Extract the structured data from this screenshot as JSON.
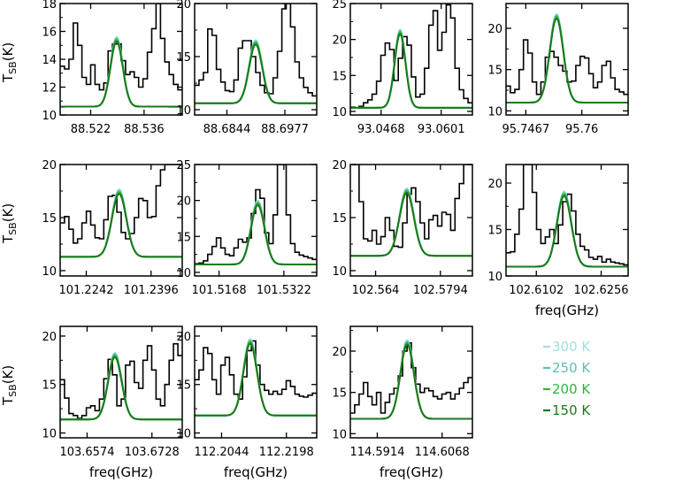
{
  "colors": {
    "observed": "#000000",
    "model_300K": "#9be3e0",
    "model_250K": "#5fbfae",
    "model_200K": "#33b03a",
    "model_150K": "#1a7a1a"
  },
  "legend": {
    "entries": [
      {
        "label": "300 K",
        "color_key": "model_300K"
      },
      {
        "label": "250 K",
        "color_key": "model_250K"
      },
      {
        "label": "200 K",
        "color_key": "model_200K"
      },
      {
        "label": "150 K",
        "color_key": "model_150K"
      }
    ]
  },
  "ylabel_main": "T",
  "ylabel_sub": "SB",
  "ylabel_unit": "(K)",
  "xlabel": "freq(GHz)",
  "chart_data": [
    {
      "type": "line",
      "row": 0,
      "col": 0,
      "show_ylabel": true,
      "show_xlabel": false,
      "ylim": [
        10,
        18
      ],
      "yticks": [
        "10",
        "12",
        "14",
        "16",
        "18"
      ],
      "yticks_v": [
        10,
        12,
        14,
        16,
        18
      ],
      "xlim": [
        88.514,
        88.546
      ],
      "xticks": [
        "88.522",
        "88.536"
      ],
      "xticks_v": [
        88.522,
        88.536
      ],
      "center": 88.5288,
      "width": 0.0016,
      "baseline": 10.6,
      "peak": 15.4,
      "observed_y": [
        13.5,
        13.3,
        14.0,
        16.6,
        15.0,
        12.7,
        12.2,
        13.6,
        12.2,
        11.8,
        12.3,
        14.6,
        15.1,
        15.1,
        13.9,
        12.9,
        13.1,
        12.7,
        12.0,
        12.6,
        14.5,
        16.2,
        18.0,
        15.5,
        13.8,
        12.9,
        12.2,
        11.8
      ]
    },
    {
      "type": "line",
      "row": 0,
      "col": 1,
      "show_ylabel": false,
      "show_xlabel": false,
      "ylim": [
        9.5,
        20
      ],
      "yticks": [
        "10",
        "15",
        "20"
      ],
      "yticks_v": [
        10,
        15,
        20
      ],
      "xlim": [
        88.677,
        88.705
      ],
      "xticks": [
        "88.6844",
        "88.6977"
      ],
      "xticks_v": [
        88.6844,
        88.6977
      ],
      "center": 88.691,
      "width": 0.0015,
      "baseline": 10.6,
      "peak": 16.3,
      "observed_y": [
        12.3,
        12.8,
        13.5,
        17.6,
        17.0,
        13.8,
        12.6,
        11.8,
        11.7,
        12.8,
        15.8,
        16.5,
        16.5,
        15.0,
        13.5,
        12.3,
        11.6,
        11.5,
        13.0,
        15.5,
        19.5,
        20.0,
        17.8,
        14.5,
        13.0,
        12.1,
        11.6,
        11.3
      ]
    },
    {
      "type": "line",
      "row": 0,
      "col": 2,
      "show_ylabel": false,
      "show_xlabel": false,
      "ylim": [
        9.5,
        25
      ],
      "yticks": [
        "10",
        "15",
        "20",
        "25"
      ],
      "yticks_v": [
        10,
        15,
        20,
        25
      ],
      "xlim": [
        93.04,
        93.067
      ],
      "xticks": [
        "93.0468",
        "93.0601"
      ],
      "xticks_v": [
        93.0468,
        93.0601
      ],
      "center": 93.051,
      "width": 0.0012,
      "baseline": 10.5,
      "peak": 21.0,
      "observed_y": [
        10.6,
        10.5,
        10.7,
        11.2,
        11.6,
        12.4,
        14.2,
        17.8,
        19.5,
        18.6,
        14.3,
        17.4,
        20.4,
        19.2,
        14.8,
        12.0,
        12.4,
        16.0,
        22.0,
        24.0,
        18.5,
        21.0,
        24.8,
        23.0,
        16.0,
        13.0,
        11.8,
        11.2
      ]
    },
    {
      "type": "line",
      "row": 0,
      "col": 3,
      "show_ylabel": false,
      "show_xlabel": false,
      "ylim": [
        9.5,
        23
      ],
      "yticks": [
        "10",
        "15",
        "20"
      ],
      "yticks_v": [
        10,
        15,
        20
      ],
      "xlim": [
        95.742,
        95.771
      ],
      "xticks": [
        "95.7467",
        "95.76"
      ],
      "xticks_v": [
        95.7467,
        95.76
      ],
      "center": 95.754,
      "width": 0.0016,
      "baseline": 11.0,
      "peak": 21.4,
      "observed_y": [
        13.0,
        12.2,
        12.6,
        15.0,
        18.6,
        17.0,
        13.5,
        12.0,
        13.5,
        16.5,
        17.2,
        16.5,
        15.5,
        14.8,
        13.5,
        13.6,
        15.5,
        16.6,
        16.4,
        14.5,
        12.8,
        13.5,
        15.5,
        16.0,
        14.0,
        12.6,
        12.3,
        12.0
      ]
    },
    {
      "type": "line",
      "row": 1,
      "col": 0,
      "show_ylabel": true,
      "show_xlabel": false,
      "ylim": [
        9.5,
        20
      ],
      "yticks": [
        "10",
        "15",
        "20"
      ],
      "yticks_v": [
        10,
        15,
        20
      ],
      "xlim": [
        101.218,
        101.247
      ],
      "xticks": [
        "101.2242",
        "101.2396"
      ],
      "xticks_v": [
        101.2242,
        101.2396
      ],
      "center": 101.232,
      "width": 0.0017,
      "baseline": 11.3,
      "peak": 17.4,
      "observed_y": [
        14.5,
        15.1,
        13.9,
        12.6,
        13.0,
        14.5,
        15.6,
        14.3,
        13.1,
        13.0,
        14.8,
        17.0,
        17.1,
        15.5,
        13.6,
        13.0,
        13.5,
        15.0,
        16.8,
        16.6,
        15.0,
        15.1,
        18.0,
        19.5,
        20.0,
        20.0,
        20.0,
        20.0
      ]
    },
    {
      "type": "line",
      "row": 1,
      "col": 1,
      "show_ylabel": false,
      "show_xlabel": false,
      "ylim": [
        9.5,
        25
      ],
      "yticks": [
        "10",
        "15",
        "20",
        "25"
      ],
      "yticks_v": [
        10,
        15,
        20,
        25
      ],
      "xlim": [
        101.511,
        101.54
      ],
      "xticks": [
        "101.5168",
        "101.5322"
      ],
      "xticks_v": [
        101.5168,
        101.5322
      ],
      "center": 101.526,
      "width": 0.0016,
      "baseline": 11.1,
      "peak": 19.6,
      "observed_y": [
        11.2,
        11.3,
        11.6,
        12.5,
        13.6,
        14.8,
        13.4,
        12.5,
        12.3,
        13.4,
        14.6,
        14.2,
        14.8,
        18.2,
        21.5,
        20.3,
        15.5,
        14.0,
        18.0,
        25.0,
        25.0,
        18.0,
        14.0,
        12.8,
        12.4,
        12.2,
        12.0,
        11.8
      ]
    },
    {
      "type": "line",
      "row": 1,
      "col": 2,
      "show_ylabel": false,
      "show_xlabel": false,
      "ylim": [
        9.5,
        20
      ],
      "yticks": [
        "10",
        "15",
        "20"
      ],
      "yticks_v": [
        10,
        15,
        20
      ],
      "xlim": [
        102.558,
        102.587
      ],
      "xticks": [
        "102.564",
        "102.5794"
      ],
      "xticks_v": [
        102.564,
        102.5794
      ],
      "center": 102.5714,
      "width": 0.0017,
      "baseline": 11.4,
      "peak": 17.5,
      "observed_y": [
        20.0,
        20.0,
        16.5,
        13.0,
        12.8,
        13.8,
        12.5,
        13.2,
        15.0,
        13.8,
        12.3,
        12.2,
        14.5,
        17.2,
        17.8,
        16.5,
        14.5,
        13.0,
        14.8,
        15.2,
        14.2,
        15.5,
        15.3,
        13.8,
        16.8,
        18.2,
        20.0,
        20.0
      ]
    },
    {
      "type": "line",
      "row": 1,
      "col": 3,
      "show_ylabel": false,
      "show_xlabel": true,
      "ylim": [
        10,
        22
      ],
      "yticks": [
        "10",
        "15",
        "20"
      ],
      "yticks_v": [
        10,
        15,
        20
      ],
      "xlim": [
        102.603,
        102.632
      ],
      "xticks": [
        "102.6102",
        "102.6256"
      ],
      "xticks_v": [
        102.6102,
        102.6256
      ],
      "center": 102.6168,
      "width": 0.0017,
      "baseline": 11.0,
      "peak": 18.8,
      "observed_y": [
        12.5,
        12.6,
        14.5,
        17.2,
        22.0,
        22.0,
        19.0,
        15.0,
        13.5,
        14.2,
        15.0,
        13.5,
        15.5,
        18.0,
        18.8,
        17.0,
        14.5,
        13.2,
        12.8,
        12.0,
        11.8,
        12.1,
        11.5,
        11.8,
        11.5,
        11.4,
        11.3,
        11.2
      ]
    },
    {
      "type": "line",
      "row": 2,
      "col": 0,
      "show_ylabel": true,
      "show_xlabel": true,
      "ylim": [
        9.5,
        21
      ],
      "yticks": [
        "10",
        "15",
        "20"
      ],
      "yticks_v": [
        10,
        15,
        20
      ],
      "xlim": [
        103.651,
        103.68
      ],
      "xticks": [
        "103.6574",
        "103.6728"
      ],
      "xticks_v": [
        103.6574,
        103.6728
      ],
      "center": 103.664,
      "width": 0.0016,
      "baseline": 11.4,
      "peak": 18.0,
      "observed_y": [
        15.5,
        13.6,
        12.0,
        11.8,
        11.5,
        11.8,
        12.6,
        12.8,
        12.3,
        13.5,
        15.6,
        17.6,
        16.0,
        12.8,
        13.5,
        17.0,
        17.4,
        15.2,
        14.6,
        17.5,
        19.0,
        16.5,
        13.5,
        12.8,
        15.0,
        17.5,
        19.2,
        18.0
      ]
    },
    {
      "type": "line",
      "row": 2,
      "col": 1,
      "show_ylabel": false,
      "show_xlabel": true,
      "ylim": [
        9.5,
        21
      ],
      "yticks": [
        "10",
        "15",
        "20"
      ],
      "yticks_v": [
        10,
        15,
        20
      ],
      "xlim": [
        112.198,
        112.227
      ],
      "xticks": [
        "112.2044",
        "112.2198"
      ],
      "xticks_v": [
        112.2044,
        112.2198
      ],
      "center": 112.2112,
      "width": 0.0016,
      "baseline": 11.8,
      "peak": 19.4,
      "observed_y": [
        15.5,
        16.5,
        18.8,
        18.2,
        15.5,
        14.0,
        17.0,
        17.8,
        16.0,
        14.0,
        13.5,
        15.8,
        18.5,
        19.5,
        17.0,
        15.0,
        14.4,
        14.0,
        14.3,
        14.0,
        14.5,
        15.4,
        14.8,
        14.0,
        13.8,
        13.7,
        13.9,
        14.1
      ]
    },
    {
      "type": "line",
      "row": 2,
      "col": 2,
      "show_ylabel": false,
      "show_xlabel": true,
      "ylim": [
        9.5,
        23
      ],
      "yticks": [
        "10",
        "15",
        "20"
      ],
      "yticks_v": [
        10,
        15,
        20
      ],
      "xlim": [
        114.585,
        114.614
      ],
      "xticks": [
        "114.5914",
        "114.6068"
      ],
      "xticks_v": [
        114.5914,
        114.6068
      ],
      "center": 114.5985,
      "width": 0.0016,
      "baseline": 11.8,
      "peak": 21.0,
      "observed_y": [
        12.5,
        13.5,
        14.8,
        16.2,
        14.5,
        13.5,
        15.0,
        12.5,
        13.8,
        14.8,
        15.5,
        17.0,
        20.0,
        21.0,
        18.0,
        16.0,
        15.0,
        15.5,
        15.2,
        14.5,
        14.2,
        14.8,
        15.0,
        14.2,
        14.8,
        15.5,
        16.2,
        16.8
      ]
    }
  ]
}
